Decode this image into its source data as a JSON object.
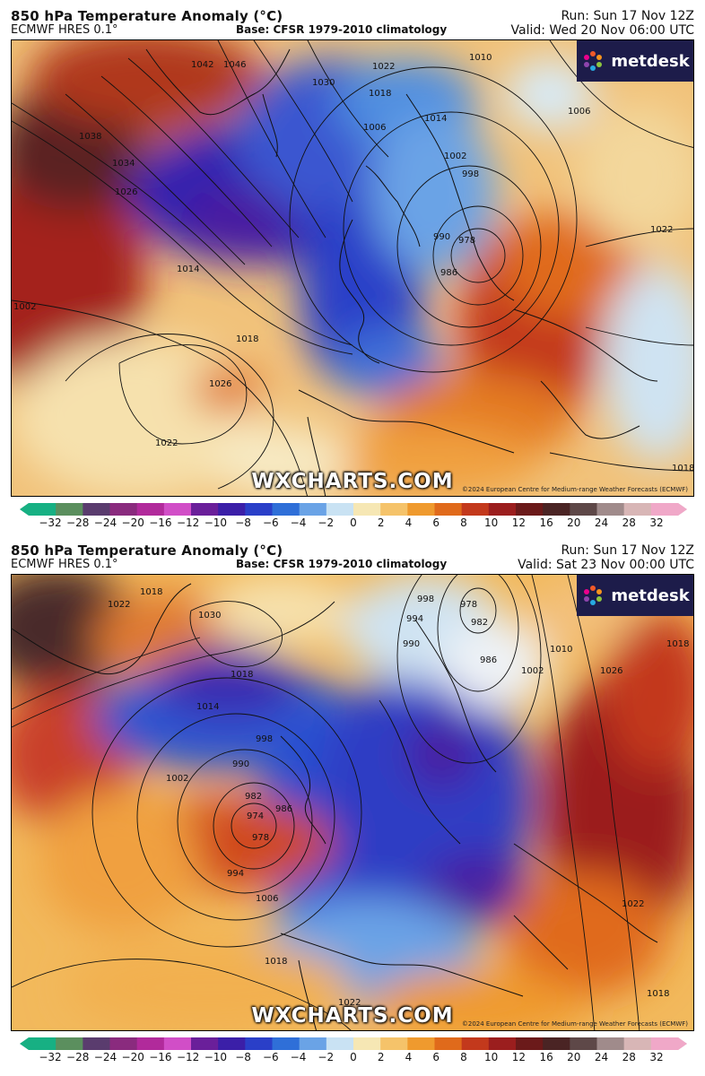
{
  "panels": [
    {
      "title": "850 hPa Temperature Anomaly (°C)",
      "model": "ECMWF HRES 0.1°",
      "base": "Base: CFSR 1979-2010 climatology",
      "run": "Run: Sun 17 Nov 12Z",
      "valid": "Valid: Wed 20 Nov 06:00 UTC",
      "logo_text": "metdesk",
      "watermark": "WXCHARTS.COM",
      "copyright": "©2024 European Centre for Medium-range Weather Forecasts (ECMWF)",
      "isobar_labels": [
        "1046",
        "1042",
        "1038",
        "1034",
        "1030",
        "1026",
        "1022",
        "1018",
        "1014",
        "1010",
        "1006",
        "1002",
        "998",
        "990",
        "986",
        "978",
        "1026",
        "1022",
        "1018",
        "1014",
        "1022",
        "1018",
        "1006",
        "1002"
      ]
    },
    {
      "title": "850 hPa Temperature Anomaly (°C)",
      "model": "ECMWF HRES 0.1°",
      "base": "Base: CFSR 1979-2010 climatology",
      "run": "Run: Sun 17 Nov 12Z",
      "valid": "Valid: Sat 23 Nov 00:00 UTC",
      "logo_text": "metdesk",
      "watermark": "WXCHARTS.COM",
      "copyright": "©2024 European Centre for Medium-range Weather Forecasts (ECMWF)",
      "isobar_labels": [
        "1018",
        "1022",
        "1030",
        "1018",
        "1014",
        "998",
        "990",
        "1002",
        "982",
        "974",
        "978",
        "986",
        "994",
        "1006",
        "1018",
        "1022",
        "998",
        "994",
        "990",
        "978",
        "982",
        "986",
        "1002",
        "1010",
        "1026",
        "1018",
        "1022",
        "1018"
      ]
    }
  ],
  "colorbar": {
    "ticks": [
      "−32",
      "−28",
      "−24",
      "−20",
      "−16",
      "−12",
      "−10",
      "−8",
      "−6",
      "−4",
      "−2",
      "0",
      "2",
      "4",
      "6",
      "8",
      "10",
      "12",
      "16",
      "20",
      "24",
      "28",
      "32"
    ],
    "colors": [
      "#17b083",
      "#5b8f5e",
      "#5a3c6e",
      "#8a2b7e",
      "#b12a9b",
      "#d14ec7",
      "#6a1f9a",
      "#3b1fa8",
      "#2a3fc8",
      "#2f6fd8",
      "#6aa3e6",
      "#c9e2f3",
      "#f6e7b4",
      "#f5c36a",
      "#ef9a2e",
      "#e06a1b",
      "#c3391c",
      "#9b1e1e",
      "#6b1a1a",
      "#4a2424",
      "#5e4848",
      "#a08b8b",
      "#d8b6b6",
      "#f0a8c8"
    ]
  }
}
